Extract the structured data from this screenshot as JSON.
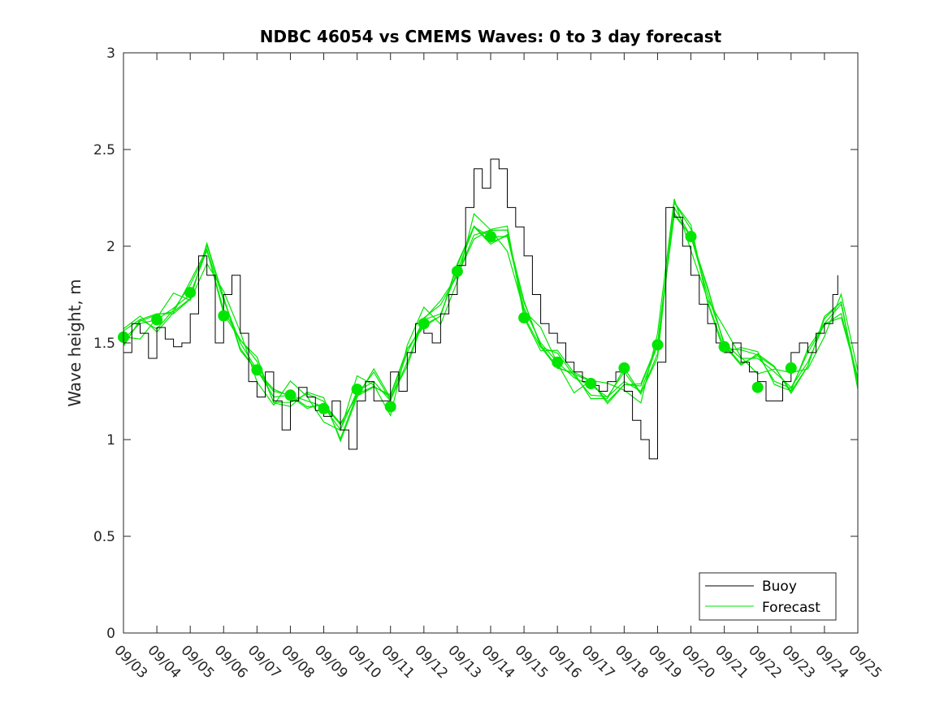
{
  "chart_data": {
    "type": "line",
    "title": "NDBC 46054 vs CMEMS Waves: 0 to 3 day forecast",
    "xlabel": "",
    "ylabel": "Wave height, m",
    "ylim": [
      0,
      3
    ],
    "yticks": [
      "0",
      "0.5",
      "1",
      "1.5",
      "2",
      "2.5",
      "3"
    ],
    "ytick_values": [
      0,
      0.5,
      1,
      1.5,
      2,
      2.5,
      3
    ],
    "xlim": [
      0,
      22
    ],
    "xticks": [
      "09/03",
      "09/04",
      "09/05",
      "09/06",
      "09/07",
      "09/08",
      "09/09",
      "09/10",
      "09/11",
      "09/12",
      "09/13",
      "09/14",
      "09/15",
      "09/16",
      "09/17",
      "09/18",
      "09/19",
      "09/20",
      "09/21",
      "09/22",
      "09/23",
      "09/24",
      "09/25"
    ],
    "legend": {
      "position": "bottom-right",
      "entries": [
        {
          "label": "Buoy",
          "color": "#000000"
        },
        {
          "label": "Forecast",
          "color": "#00e600"
        }
      ]
    },
    "buoy_key_points": {
      "x": [
        0,
        0.25,
        0.5,
        0.75,
        1.0,
        1.25,
        1.5,
        1.75,
        2.0,
        2.25,
        2.5,
        2.75,
        3.0,
        3.25,
        3.5,
        3.75,
        4.0,
        4.25,
        4.5,
        4.75,
        5.0,
        5.25,
        5.5,
        5.75,
        6.0,
        6.25,
        6.5,
        6.75,
        7.0,
        7.25,
        7.5,
        7.75,
        8.0,
        8.25,
        8.5,
        8.75,
        9.0,
        9.25,
        9.5,
        9.75,
        10.0,
        10.25,
        10.5,
        10.75,
        11.0,
        11.25,
        11.5,
        11.75,
        12.0,
        12.25,
        12.5,
        12.75,
        13.0,
        13.25,
        13.5,
        13.75,
        14.0,
        14.25,
        14.5,
        14.75,
        15.0,
        15.25,
        15.5,
        15.75,
        16.0,
        16.25,
        16.5,
        16.75,
        17.0,
        17.25,
        17.5,
        17.75,
        18.0,
        18.25,
        18.5,
        18.75,
        19.0,
        19.25,
        19.5,
        19.75,
        20.0,
        20.25,
        20.5,
        20.75,
        21.0,
        21.25,
        21.4
      ],
      "values": [
        1.45,
        1.6,
        1.55,
        1.42,
        1.58,
        1.52,
        1.48,
        1.5,
        1.65,
        1.95,
        1.85,
        1.5,
        1.75,
        1.85,
        1.55,
        1.3,
        1.22,
        1.35,
        1.2,
        1.05,
        1.2,
        1.27,
        1.22,
        1.15,
        1.12,
        1.2,
        1.05,
        0.95,
        1.2,
        1.3,
        1.2,
        1.2,
        1.35,
        1.25,
        1.45,
        1.6,
        1.55,
        1.5,
        1.65,
        1.75,
        1.9,
        2.2,
        2.4,
        2.3,
        2.45,
        2.4,
        2.2,
        2.1,
        1.95,
        1.75,
        1.6,
        1.55,
        1.5,
        1.4,
        1.35,
        1.3,
        1.28,
        1.25,
        1.3,
        1.35,
        1.25,
        1.1,
        1.0,
        0.9,
        1.4,
        2.2,
        2.15,
        2.0,
        1.85,
        1.7,
        1.6,
        1.5,
        1.45,
        1.5,
        1.4,
        1.35,
        1.3,
        1.2,
        1.2,
        1.3,
        1.45,
        1.5,
        1.45,
        1.55,
        1.6,
        1.75,
        1.85
      ]
    },
    "forecast_key_points": {
      "x": [
        0,
        0.5,
        1.0,
        1.5,
        2.0,
        2.5,
        3.0,
        3.5,
        4.0,
        4.5,
        5.0,
        5.5,
        6.0,
        6.5,
        7.0,
        7.5,
        8.0,
        8.5,
        9.0,
        9.5,
        10.0,
        10.5,
        11.0,
        11.5,
        12.0,
        12.5,
        13.0,
        13.5,
        14.0,
        14.5,
        15.0,
        15.5,
        16.0,
        16.5,
        17.0,
        17.5,
        18.0,
        18.5,
        19.0,
        19.5,
        20.0,
        20.5,
        21.0,
        21.5,
        22.0
      ],
      "values": [
        1.52,
        1.6,
        1.62,
        1.68,
        1.75,
        1.98,
        1.72,
        1.5,
        1.36,
        1.22,
        1.23,
        1.2,
        1.17,
        1.05,
        1.25,
        1.3,
        1.2,
        1.45,
        1.62,
        1.65,
        1.87,
        2.1,
        2.05,
        2.05,
        1.68,
        1.5,
        1.4,
        1.32,
        1.28,
        1.22,
        1.3,
        1.25,
        1.49,
        2.2,
        2.05,
        1.75,
        1.5,
        1.42,
        1.42,
        1.35,
        1.27,
        1.4,
        1.6,
        1.7,
        1.3
      ]
    },
    "forecast_markers": {
      "x": [
        0,
        1,
        2,
        3,
        4,
        5,
        6,
        7,
        8,
        9,
        10,
        11,
        12,
        13,
        14,
        15,
        16,
        17,
        18,
        19,
        20
      ],
      "values": [
        1.53,
        1.62,
        1.76,
        1.64,
        1.36,
        1.23,
        1.16,
        1.26,
        1.17,
        1.6,
        1.87,
        2.05,
        1.63,
        1.4,
        1.29,
        1.37,
        1.49,
        2.05,
        1.48,
        1.27,
        1.37
      ]
    },
    "colors": {
      "buoy": "#000000",
      "forecast": "#00e600",
      "axis": "#262626"
    }
  }
}
